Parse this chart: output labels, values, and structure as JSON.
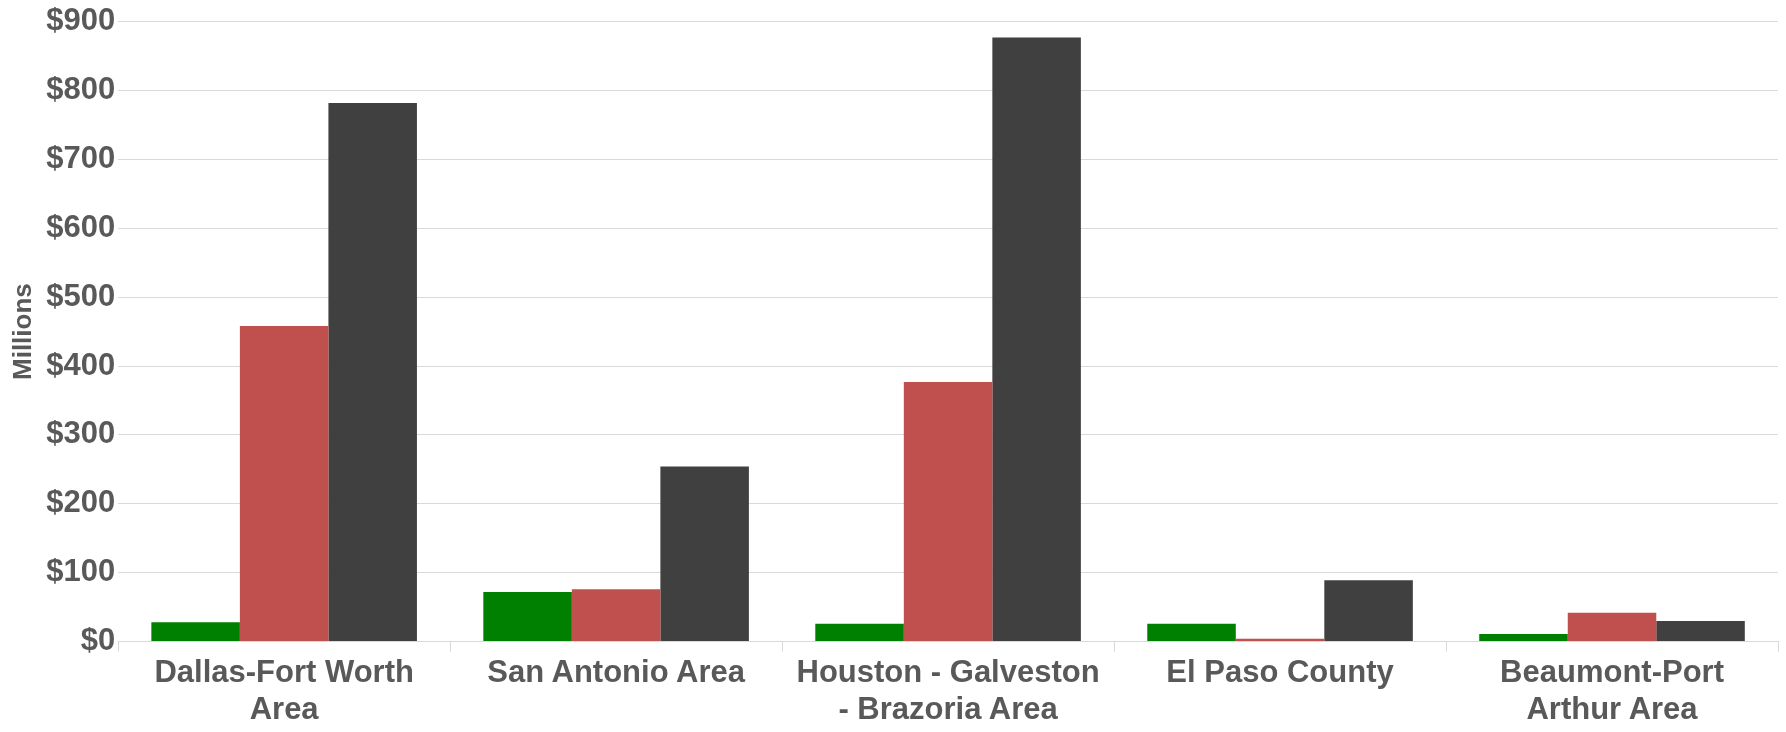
{
  "chart_data": {
    "type": "bar",
    "ylabel": "Millions",
    "categories": [
      "Dallas-Fort Worth Area",
      "San Antonio Area",
      "Houston - Galveston - Brazoria Area",
      "El Paso County",
      "Beaumont-Port Arthur Area"
    ],
    "series": [
      {
        "color": "#008000",
        "values": [
          28,
          72,
          26,
          26,
          11
        ]
      },
      {
        "color": "#c0504d",
        "values": [
          458,
          76,
          377,
          4,
          42
        ]
      },
      {
        "color": "#404040",
        "values": [
          782,
          254,
          877,
          89,
          30
        ]
      }
    ],
    "ylim": [
      0,
      900
    ],
    "yticks": [
      {
        "value": 0,
        "label": "$0"
      },
      {
        "value": 100,
        "label": "$100"
      },
      {
        "value": 200,
        "label": "$200"
      },
      {
        "value": 300,
        "label": "$300"
      },
      {
        "value": 400,
        "label": "$400"
      },
      {
        "value": 500,
        "label": "$500"
      },
      {
        "value": 600,
        "label": "$600"
      },
      {
        "value": 700,
        "label": "$700"
      },
      {
        "value": 800,
        "label": "$800"
      },
      {
        "value": 900,
        "label": "$900"
      }
    ],
    "grid": "y",
    "legend": false
  }
}
